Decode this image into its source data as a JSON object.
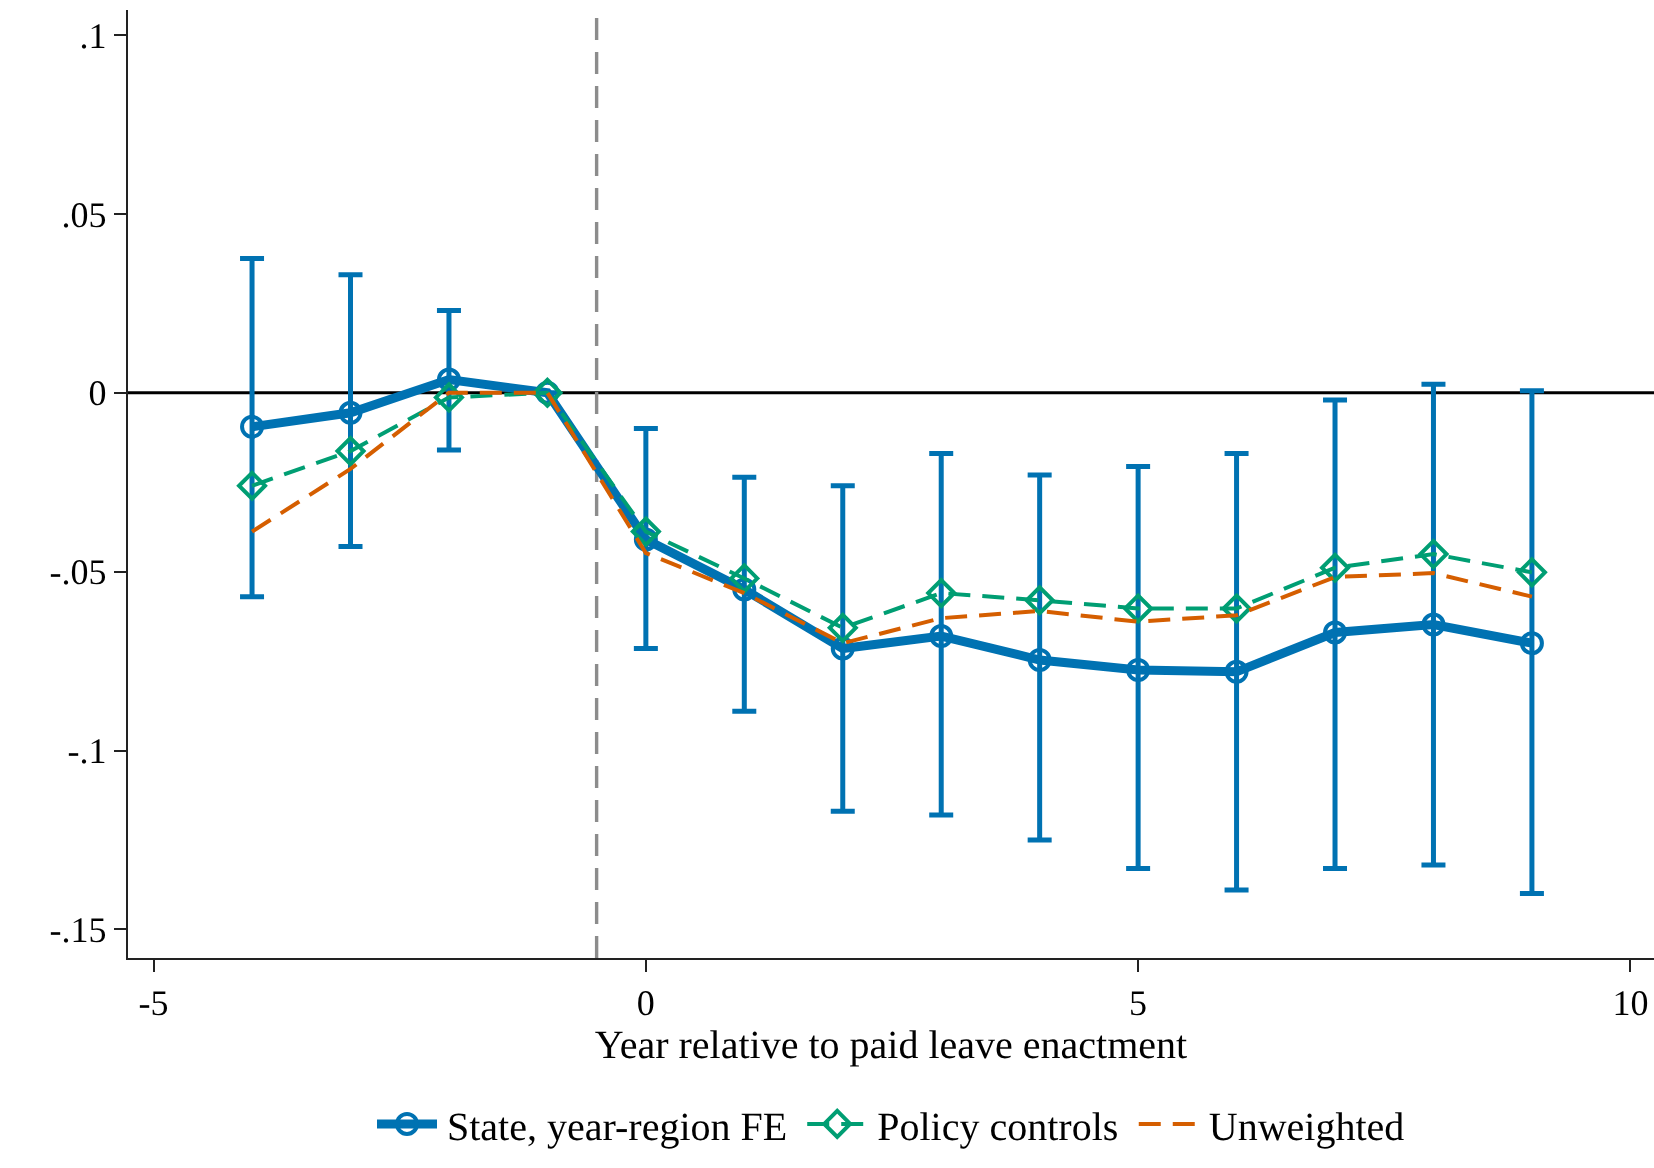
{
  "chart_data": {
    "type": "line",
    "xlabel": "Year relative to paid leave enactment",
    "x": [
      -4,
      -3,
      -2,
      -1,
      0,
      1,
      2,
      3,
      4,
      5,
      6,
      7,
      8,
      9
    ],
    "series": [
      {
        "name": "State, year-region FE",
        "color": "#0072b2",
        "marker": "circle",
        "line_style": "solid",
        "values": [
          -0.0095,
          -0.0056,
          0.0037,
          0,
          -0.041,
          -0.055,
          -0.0715,
          -0.068,
          -0.0747,
          -0.0775,
          -0.078,
          -0.067,
          -0.0648,
          -0.07
        ],
        "errors": [
          [
            -0.057,
            0.0375
          ],
          [
            -0.043,
            0.033
          ],
          [
            -0.016,
            0.023
          ],
          null,
          [
            -0.0715,
            -0.01
          ],
          [
            -0.089,
            -0.0236
          ],
          [
            -0.117,
            -0.026
          ],
          [
            -0.118,
            -0.017
          ],
          [
            -0.125,
            -0.023
          ],
          [
            -0.133,
            -0.0206
          ],
          [
            -0.139,
            -0.017
          ],
          [
            -0.133,
            -0.002
          ],
          [
            -0.132,
            0.0024
          ],
          [
            -0.14,
            0.0006
          ]
        ]
      },
      {
        "name": "Policy controls",
        "color": "#009e73",
        "marker": "diamond",
        "line_style": "dashed",
        "values": [
          -0.026,
          -0.0163,
          -0.0013,
          0,
          -0.0388,
          -0.0519,
          -0.0657,
          -0.056,
          -0.058,
          -0.0603,
          -0.0603,
          -0.0489,
          -0.0451,
          -0.0502
        ]
      },
      {
        "name": "Unweighted",
        "color": "#d55e00",
        "marker": "none",
        "line_style": "dashed",
        "values": [
          -0.0388,
          -0.0213,
          0,
          0,
          -0.0448,
          -0.056,
          -0.07,
          -0.063,
          -0.061,
          -0.064,
          -0.0622,
          -0.0515,
          -0.0504,
          -0.057
        ]
      }
    ],
    "xlim": [
      -5.26,
      10.24
    ],
    "xticks": [
      -5,
      0,
      5,
      10
    ],
    "ylim": [
      -0.158,
      0.107
    ],
    "yticks": [
      {
        "value": -0.15,
        "label": "-.15"
      },
      {
        "value": -0.1,
        "label": "-.1"
      },
      {
        "value": -0.05,
        "label": "-.05"
      },
      0,
      {
        "value": 0.05,
        "label": ".05"
      },
      {
        "value": 0.1,
        "label": ".1"
      }
    ],
    "ref_lines": [
      {
        "axis": "y",
        "value": 0,
        "color": "#000000",
        "line_style": "solid"
      },
      {
        "axis": "x",
        "value": -0.5,
        "color": "#8c8c8c",
        "line_style": "dashed"
      }
    ],
    "grid": false,
    "legend": "bottom"
  }
}
